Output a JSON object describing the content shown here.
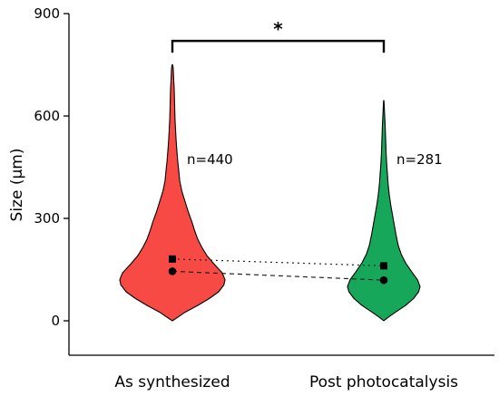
{
  "chart_data": {
    "type": "violin",
    "title": "",
    "xlabel": "",
    "ylabel": "Size (μm)",
    "ylim": [
      0,
      900
    ],
    "yticks": [
      0,
      300,
      600,
      900
    ],
    "y_tick_labels": [
      "0",
      "300",
      "600",
      "900"
    ],
    "grid": false,
    "categories": [
      "As synthesized",
      "Post photocatalysis"
    ],
    "series": [
      {
        "category": "As synthesized",
        "color": "#f84a45",
        "n_label": "n=440",
        "mean": 181,
        "median": 145,
        "max": 750,
        "min": 0,
        "density_profile": [
          [
            0,
            0
          ],
          [
            10,
            0.1
          ],
          [
            25,
            0.24
          ],
          [
            45,
            0.48
          ],
          [
            65,
            0.7
          ],
          [
            85,
            0.88
          ],
          [
            105,
            0.98
          ],
          [
            120,
            1.0
          ],
          [
            140,
            0.95
          ],
          [
            165,
            0.8
          ],
          [
            190,
            0.66
          ],
          [
            215,
            0.56
          ],
          [
            240,
            0.48
          ],
          [
            265,
            0.42
          ],
          [
            290,
            0.37
          ],
          [
            320,
            0.3
          ],
          [
            350,
            0.24
          ],
          [
            380,
            0.18
          ],
          [
            410,
            0.14
          ],
          [
            440,
            0.12
          ],
          [
            470,
            0.1
          ],
          [
            500,
            0.085
          ],
          [
            530,
            0.07
          ],
          [
            560,
            0.06
          ],
          [
            590,
            0.05
          ],
          [
            620,
            0.045
          ],
          [
            650,
            0.04
          ],
          [
            680,
            0.035
          ],
          [
            710,
            0.025
          ],
          [
            740,
            0.015
          ],
          [
            750,
            0.005
          ]
        ]
      },
      {
        "category": "Post photocatalysis",
        "color": "#17a75a",
        "n_label": "n=281",
        "mean": 161,
        "median": 119,
        "max": 645,
        "min": 0,
        "density_profile": [
          [
            0,
            0
          ],
          [
            10,
            0.12
          ],
          [
            25,
            0.32
          ],
          [
            45,
            0.6
          ],
          [
            65,
            0.82
          ],
          [
            85,
            0.96
          ],
          [
            100,
            1.0
          ],
          [
            120,
            0.93
          ],
          [
            145,
            0.76
          ],
          [
            170,
            0.6
          ],
          [
            195,
            0.48
          ],
          [
            220,
            0.4
          ],
          [
            250,
            0.34
          ],
          [
            280,
            0.29
          ],
          [
            310,
            0.24
          ],
          [
            340,
            0.19
          ],
          [
            370,
            0.15
          ],
          [
            400,
            0.12
          ],
          [
            430,
            0.1
          ],
          [
            460,
            0.08
          ],
          [
            490,
            0.065
          ],
          [
            520,
            0.055
          ],
          [
            550,
            0.045
          ],
          [
            580,
            0.035
          ],
          [
            610,
            0.02
          ],
          [
            635,
            0.01
          ],
          [
            645,
            0.004
          ]
        ]
      }
    ],
    "connectors": [
      {
        "stat": "mean",
        "marker": "square",
        "line_style": "dotted"
      },
      {
        "stat": "median",
        "marker": "circle",
        "line_style": "dashed"
      }
    ],
    "significance": {
      "label": "*",
      "between": [
        "As synthesized",
        "Post photocatalysis"
      ],
      "y": 820
    }
  }
}
